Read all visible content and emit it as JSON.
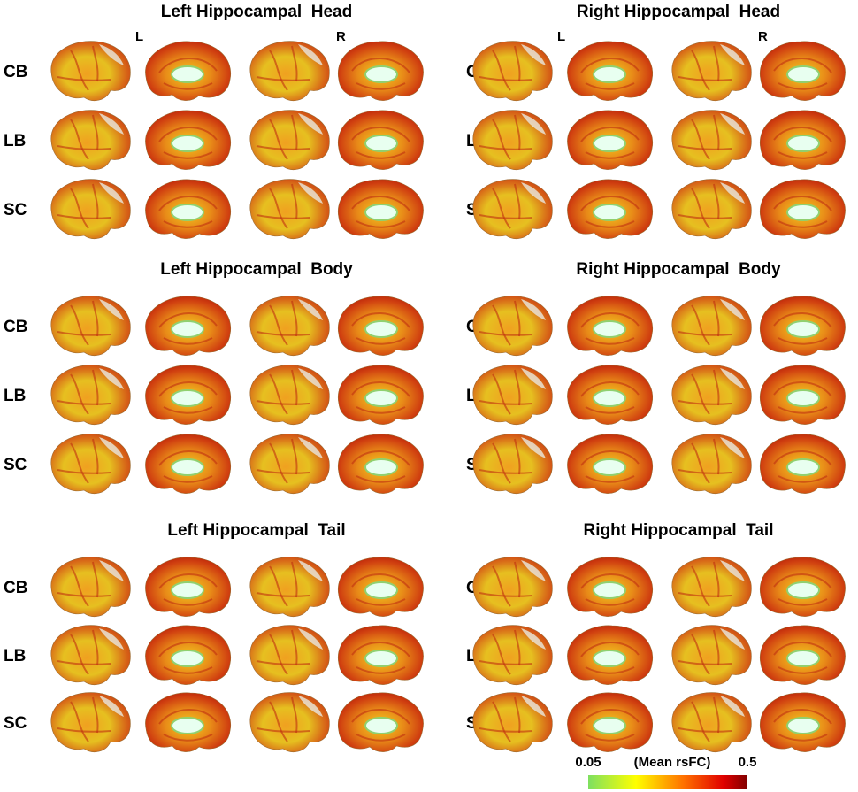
{
  "panels": [
    {
      "title": "Left Hippocampal  Head",
      "rows": [
        "CB",
        "LB",
        "SC"
      ]
    },
    {
      "title": "Right Hippocampal  Head",
      "rows": [
        "CB",
        "LB",
        "SC"
      ]
    },
    {
      "title": "Left Hippocampal  Body",
      "rows": [
        "CB",
        "LB",
        "SC"
      ]
    },
    {
      "title": "Right Hippocampal  Body",
      "rows": [
        "CB",
        "LB",
        "SC"
      ]
    },
    {
      "title": "Left Hippocampal  Tail",
      "rows": [
        "CB",
        "LB",
        "SC"
      ]
    },
    {
      "title": "Right Hippocampal  Tail",
      "rows": [
        "CB",
        "LB",
        "SC"
      ]
    }
  ],
  "hemisphere_labels": [
    "L",
    "R"
  ],
  "colorbar": {
    "min": 0.05,
    "max": 0.5,
    "label": "(Mean rsFC)"
  }
}
